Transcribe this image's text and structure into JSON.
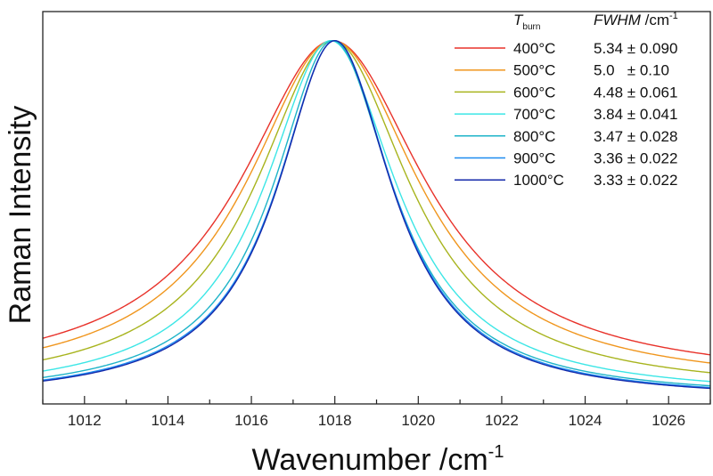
{
  "chart_data": {
    "type": "line",
    "xlabel_main": "Wavenumber /cm",
    "xlabel_sup": "-1",
    "ylabel": "Raman Intensity",
    "xlim": [
      1011,
      1027
    ],
    "ylim": [
      0,
      1.08
    ],
    "x_ticks": [
      1012,
      1014,
      1016,
      1018,
      1020,
      1022,
      1024,
      1026
    ],
    "y_ticks_shown": false,
    "grid": false,
    "legend": {
      "position": "top-right",
      "col1_head_main": "T",
      "col1_head_sub": "burn",
      "col2_head_main": "FWHM",
      "col2_head_unit": " /cm",
      "col2_head_sup": "-1"
    },
    "series": [
      {
        "name": "400°C",
        "fwhm_label": "5.34 ± 0.090",
        "color": "#e8322a",
        "center": 1017.95,
        "fwhm": 5.34,
        "baseline": 0.06
      },
      {
        "name": "500°C",
        "fwhm_label": "5.0   ± 0.10",
        "color": "#f0961e",
        "center": 1017.95,
        "fwhm": 5.0,
        "baseline": 0.045
      },
      {
        "name": "600°C",
        "fwhm_label": "4.48 ± 0.061",
        "color": "#a8b41e",
        "center": 1017.95,
        "fwhm": 4.48,
        "baseline": 0.03
      },
      {
        "name": "700°C",
        "fwhm_label": "3.84 ± 0.041",
        "color": "#3ce6e6",
        "center": 1017.9,
        "fwhm": 3.84,
        "baseline": 0.02
      },
      {
        "name": "800°C",
        "fwhm_label": "3.47 ± 0.028",
        "color": "#1eb4c8",
        "center": 1017.95,
        "fwhm": 3.47,
        "baseline": 0.015
      },
      {
        "name": "900°C",
        "fwhm_label": "3.36 ± 0.022",
        "color": "#1e8cf0",
        "center": 1018.0,
        "fwhm": 3.36,
        "baseline": 0.012
      },
      {
        "name": "1000°C",
        "fwhm_label": "3.33 ± 0.022",
        "color": "#1428aa",
        "center": 1018.0,
        "fwhm": 3.33,
        "baseline": 0.01
      }
    ]
  }
}
